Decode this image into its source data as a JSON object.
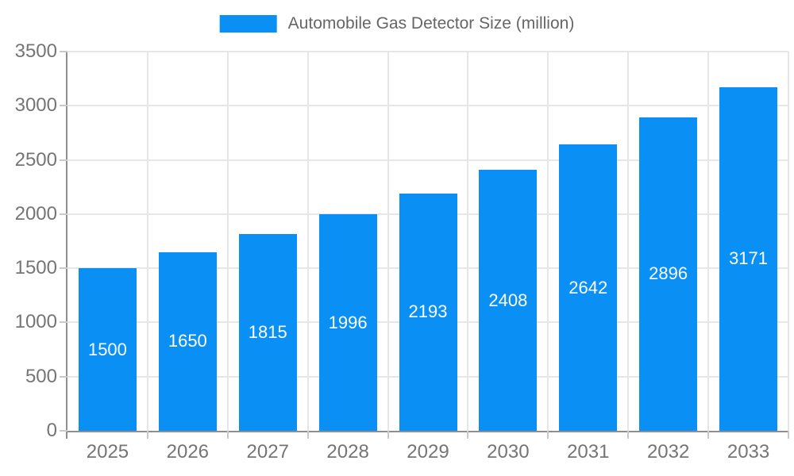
{
  "legend": {
    "label": "Automobile Gas Detector Size (million)",
    "position": "top-center",
    "swatch_color": "#0A8FF5"
  },
  "chart_data": {
    "type": "bar",
    "title": "Automobile Gas Detector Size (million)",
    "categories": [
      "2025",
      "2026",
      "2027",
      "2028",
      "2029",
      "2030",
      "2031",
      "2032",
      "2033"
    ],
    "values": [
      1500,
      1650,
      1815,
      1996,
      2193,
      2408,
      2642,
      2896,
      3171
    ],
    "xlabel": "",
    "ylabel": "",
    "ylim": [
      0,
      3500
    ],
    "yticks": [
      0,
      500,
      1000,
      1500,
      2000,
      2500,
      3000,
      3500
    ],
    "grid": true,
    "legend_position": "top-center",
    "bar_color": "#0A8FF5",
    "value_label_position": "inside-center",
    "value_label_color": "#ffffff"
  },
  "colors": {
    "bar": "#0A8FF5",
    "axis_line": "#8f8f8f",
    "grid_line": "#e6e6e6",
    "tick_line": "#c9c9c9",
    "axis_text": "#757575",
    "legend_text": "#666666",
    "bar_label": "#ffffff",
    "background": "#ffffff"
  }
}
